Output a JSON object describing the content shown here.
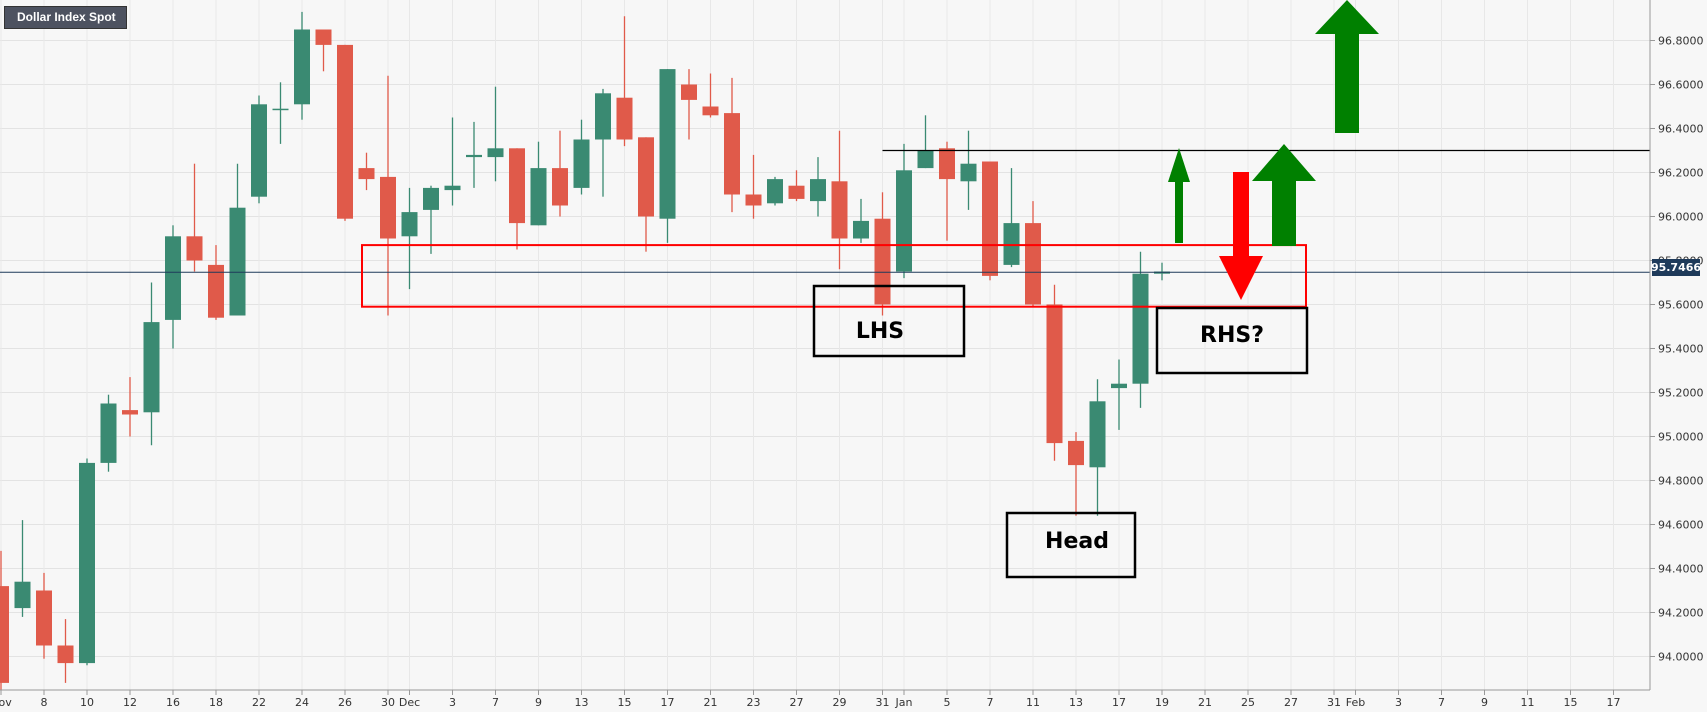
{
  "chart_data": {
    "type": "candlestick",
    "title": "Dollar Index Spot",
    "last_price": "95.7466",
    "ylim": [
      93.8,
      96.85
    ],
    "y_ticks": [
      "94.0000",
      "94.2000",
      "94.4000",
      "94.6000",
      "94.8000",
      "95.0000",
      "95.2000",
      "95.4000",
      "95.6000",
      "95.8000",
      "96.0000",
      "96.2000",
      "96.4000",
      "96.6000",
      "96.8000"
    ],
    "x_ticks": [
      {
        "i": 0,
        "label": "Nov"
      },
      {
        "i": 2,
        "label": "8"
      },
      {
        "i": 4,
        "label": "10"
      },
      {
        "i": 6,
        "label": "12"
      },
      {
        "i": 8,
        "label": "16"
      },
      {
        "i": 10,
        "label": "18"
      },
      {
        "i": 12,
        "label": "22"
      },
      {
        "i": 14,
        "label": "24"
      },
      {
        "i": 16,
        "label": "26"
      },
      {
        "i": 18,
        "label": "30"
      },
      {
        "i": 19,
        "label": "Dec"
      },
      {
        "i": 21,
        "label": "3"
      },
      {
        "i": 23,
        "label": "7"
      },
      {
        "i": 25,
        "label": "9"
      },
      {
        "i": 27,
        "label": "13"
      },
      {
        "i": 29,
        "label": "15"
      },
      {
        "i": 31,
        "label": "17"
      },
      {
        "i": 33,
        "label": "21"
      },
      {
        "i": 35,
        "label": "23"
      },
      {
        "i": 37,
        "label": "27"
      },
      {
        "i": 39,
        "label": "29"
      },
      {
        "i": 41,
        "label": "31"
      },
      {
        "i": 42,
        "label": "Jan"
      },
      {
        "i": 44,
        "label": "5"
      },
      {
        "i": 46,
        "label": "7"
      },
      {
        "i": 48,
        "label": "11"
      },
      {
        "i": 50,
        "label": "13"
      },
      {
        "i": 52,
        "label": "17"
      },
      {
        "i": 54,
        "label": "19"
      },
      {
        "i": 56,
        "label": "21"
      },
      {
        "i": 58,
        "label": "25"
      },
      {
        "i": 60,
        "label": "27"
      },
      {
        "i": 62,
        "label": "31"
      },
      {
        "i": 63,
        "label": "Feb"
      },
      {
        "i": 65,
        "label": "3"
      },
      {
        "i": 67,
        "label": "7"
      },
      {
        "i": 69,
        "label": "9"
      },
      {
        "i": 71,
        "label": "11"
      },
      {
        "i": 73,
        "label": "15"
      },
      {
        "i": 75,
        "label": "17"
      }
    ],
    "candles": [
      [
        94.32,
        94.48,
        93.85,
        93.88
      ],
      [
        94.22,
        94.62,
        94.18,
        94.34
      ],
      [
        94.3,
        94.38,
        93.99,
        94.05
      ],
      [
        94.05,
        94.17,
        93.88,
        93.97
      ],
      [
        93.97,
        94.9,
        93.96,
        94.88
      ],
      [
        94.88,
        95.19,
        94.84,
        95.15
      ],
      [
        95.12,
        95.27,
        95.0,
        95.1
      ],
      [
        95.11,
        95.7,
        94.96,
        95.52
      ],
      [
        95.53,
        95.96,
        95.4,
        95.91
      ],
      [
        95.91,
        96.24,
        95.75,
        95.8
      ],
      [
        95.78,
        95.87,
        95.53,
        95.54
      ],
      [
        95.55,
        96.24,
        95.55,
        96.04
      ],
      [
        96.09,
        96.55,
        96.06,
        96.51
      ],
      [
        96.49,
        96.61,
        96.33,
        96.49
      ],
      [
        96.51,
        96.93,
        96.44,
        96.85
      ],
      [
        96.85,
        96.85,
        96.66,
        96.78
      ],
      [
        96.78,
        96.78,
        95.98,
        95.99
      ],
      [
        96.22,
        96.29,
        96.12,
        96.17
      ],
      [
        96.18,
        96.64,
        95.55,
        95.9
      ],
      [
        95.91,
        96.13,
        95.67,
        96.02
      ],
      [
        96.03,
        96.14,
        95.83,
        96.13
      ],
      [
        96.12,
        96.45,
        96.05,
        96.14
      ],
      [
        96.27,
        96.43,
        96.13,
        96.28
      ],
      [
        96.27,
        96.59,
        96.16,
        96.31
      ],
      [
        96.31,
        96.31,
        95.85,
        95.97
      ],
      [
        95.96,
        96.34,
        95.96,
        96.22
      ],
      [
        96.22,
        96.39,
        96.0,
        96.05
      ],
      [
        96.13,
        96.44,
        96.1,
        96.35
      ],
      [
        96.35,
        96.58,
        96.09,
        96.56
      ],
      [
        96.54,
        96.91,
        96.32,
        96.35
      ],
      [
        96.36,
        96.36,
        95.84,
        96.0
      ],
      [
        95.99,
        96.67,
        95.88,
        96.67
      ],
      [
        96.6,
        96.67,
        96.35,
        96.53
      ],
      [
        96.5,
        96.65,
        96.45,
        96.46
      ],
      [
        96.47,
        96.63,
        96.02,
        96.1
      ],
      [
        96.1,
        96.28,
        95.99,
        96.05
      ],
      [
        96.06,
        96.18,
        96.05,
        96.17
      ],
      [
        96.14,
        96.21,
        96.07,
        96.08
      ],
      [
        96.07,
        96.27,
        96.0,
        96.17
      ],
      [
        96.16,
        96.39,
        95.76,
        95.9
      ],
      [
        95.9,
        96.08,
        95.88,
        95.98
      ],
      [
        95.99,
        96.11,
        95.55,
        95.6
      ],
      [
        95.75,
        96.33,
        95.72,
        96.21
      ],
      [
        96.22,
        96.46,
        96.22,
        96.3
      ],
      [
        96.31,
        96.34,
        95.89,
        96.17
      ],
      [
        96.16,
        96.39,
        96.03,
        96.24
      ],
      [
        96.25,
        96.25,
        95.71,
        95.73
      ],
      [
        95.78,
        96.22,
        95.77,
        95.97
      ],
      [
        95.97,
        96.07,
        95.59,
        95.6
      ],
      [
        95.6,
        95.69,
        94.89,
        94.97
      ],
      [
        94.98,
        95.02,
        94.64,
        94.87
      ],
      [
        94.86,
        95.26,
        94.64,
        95.16
      ],
      [
        95.22,
        95.35,
        95.03,
        95.24
      ],
      [
        95.24,
        95.84,
        95.13,
        95.74
      ],
      [
        95.74,
        95.79,
        95.71,
        95.75
      ]
    ],
    "resistance_level": 96.3,
    "current_level": 95.7466,
    "zone": [
      95.59,
      95.87
    ],
    "annotations": [
      "LHS",
      "Head",
      "RHS?"
    ],
    "colors": {
      "up": "#3a8a72",
      "down": "#e05a4a",
      "zone": "#ff0000",
      "arrow_up": "#008000",
      "arrow_down": "#ff0000",
      "price_label": "#1e3a5a"
    }
  }
}
